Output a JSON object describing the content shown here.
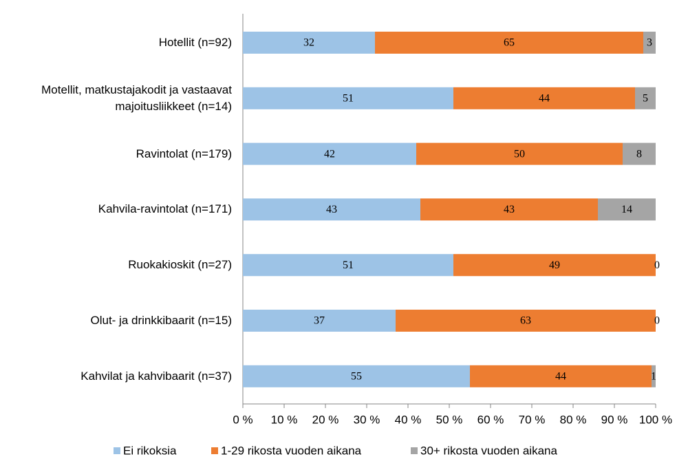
{
  "chart_data": {
    "type": "stacked-bar-horizontal",
    "categories": [
      "Hotellit (n=92)",
      "Motellit, matkustajakodit ja vastaavat\nmajoitusliikkeet (n=14)",
      "Ravintolat (n=179)",
      "Kahvila-ravintolat (n=171)",
      "Ruokakioskit (n=27)",
      "Olut- ja drinkkibaarit (n=15)",
      "Kahvilat ja kahvibaarit (n=37)"
    ],
    "series": [
      {
        "name": "Ei rikoksia",
        "color": "#9dc3e6",
        "values": [
          32,
          51,
          42,
          43,
          51,
          37,
          55
        ]
      },
      {
        "name": "1-29 rikosta vuoden aikana",
        "color": "#ed7d31",
        "values": [
          65,
          44,
          50,
          43,
          49,
          63,
          44
        ]
      },
      {
        "name": "30+ rikosta vuoden aikana",
        "color": "#a5a5a5",
        "values": [
          3,
          5,
          8,
          14,
          0,
          0,
          1
        ]
      }
    ],
    "xlim": [
      0,
      100
    ],
    "xticks": [
      {
        "value": 0,
        "label": "0 %"
      },
      {
        "value": 10,
        "label": "10 %"
      },
      {
        "value": 20,
        "label": "20 %"
      },
      {
        "value": 30,
        "label": "30 %"
      },
      {
        "value": 40,
        "label": "40 %"
      },
      {
        "value": 50,
        "label": "50 %"
      },
      {
        "value": 60,
        "label": "60 %"
      },
      {
        "value": 70,
        "label": "70 %"
      },
      {
        "value": 80,
        "label": "80 %"
      },
      {
        "value": 90,
        "label": "90 %"
      },
      {
        "value": 100,
        "label": "100 %"
      }
    ],
    "legend": "bottom"
  }
}
